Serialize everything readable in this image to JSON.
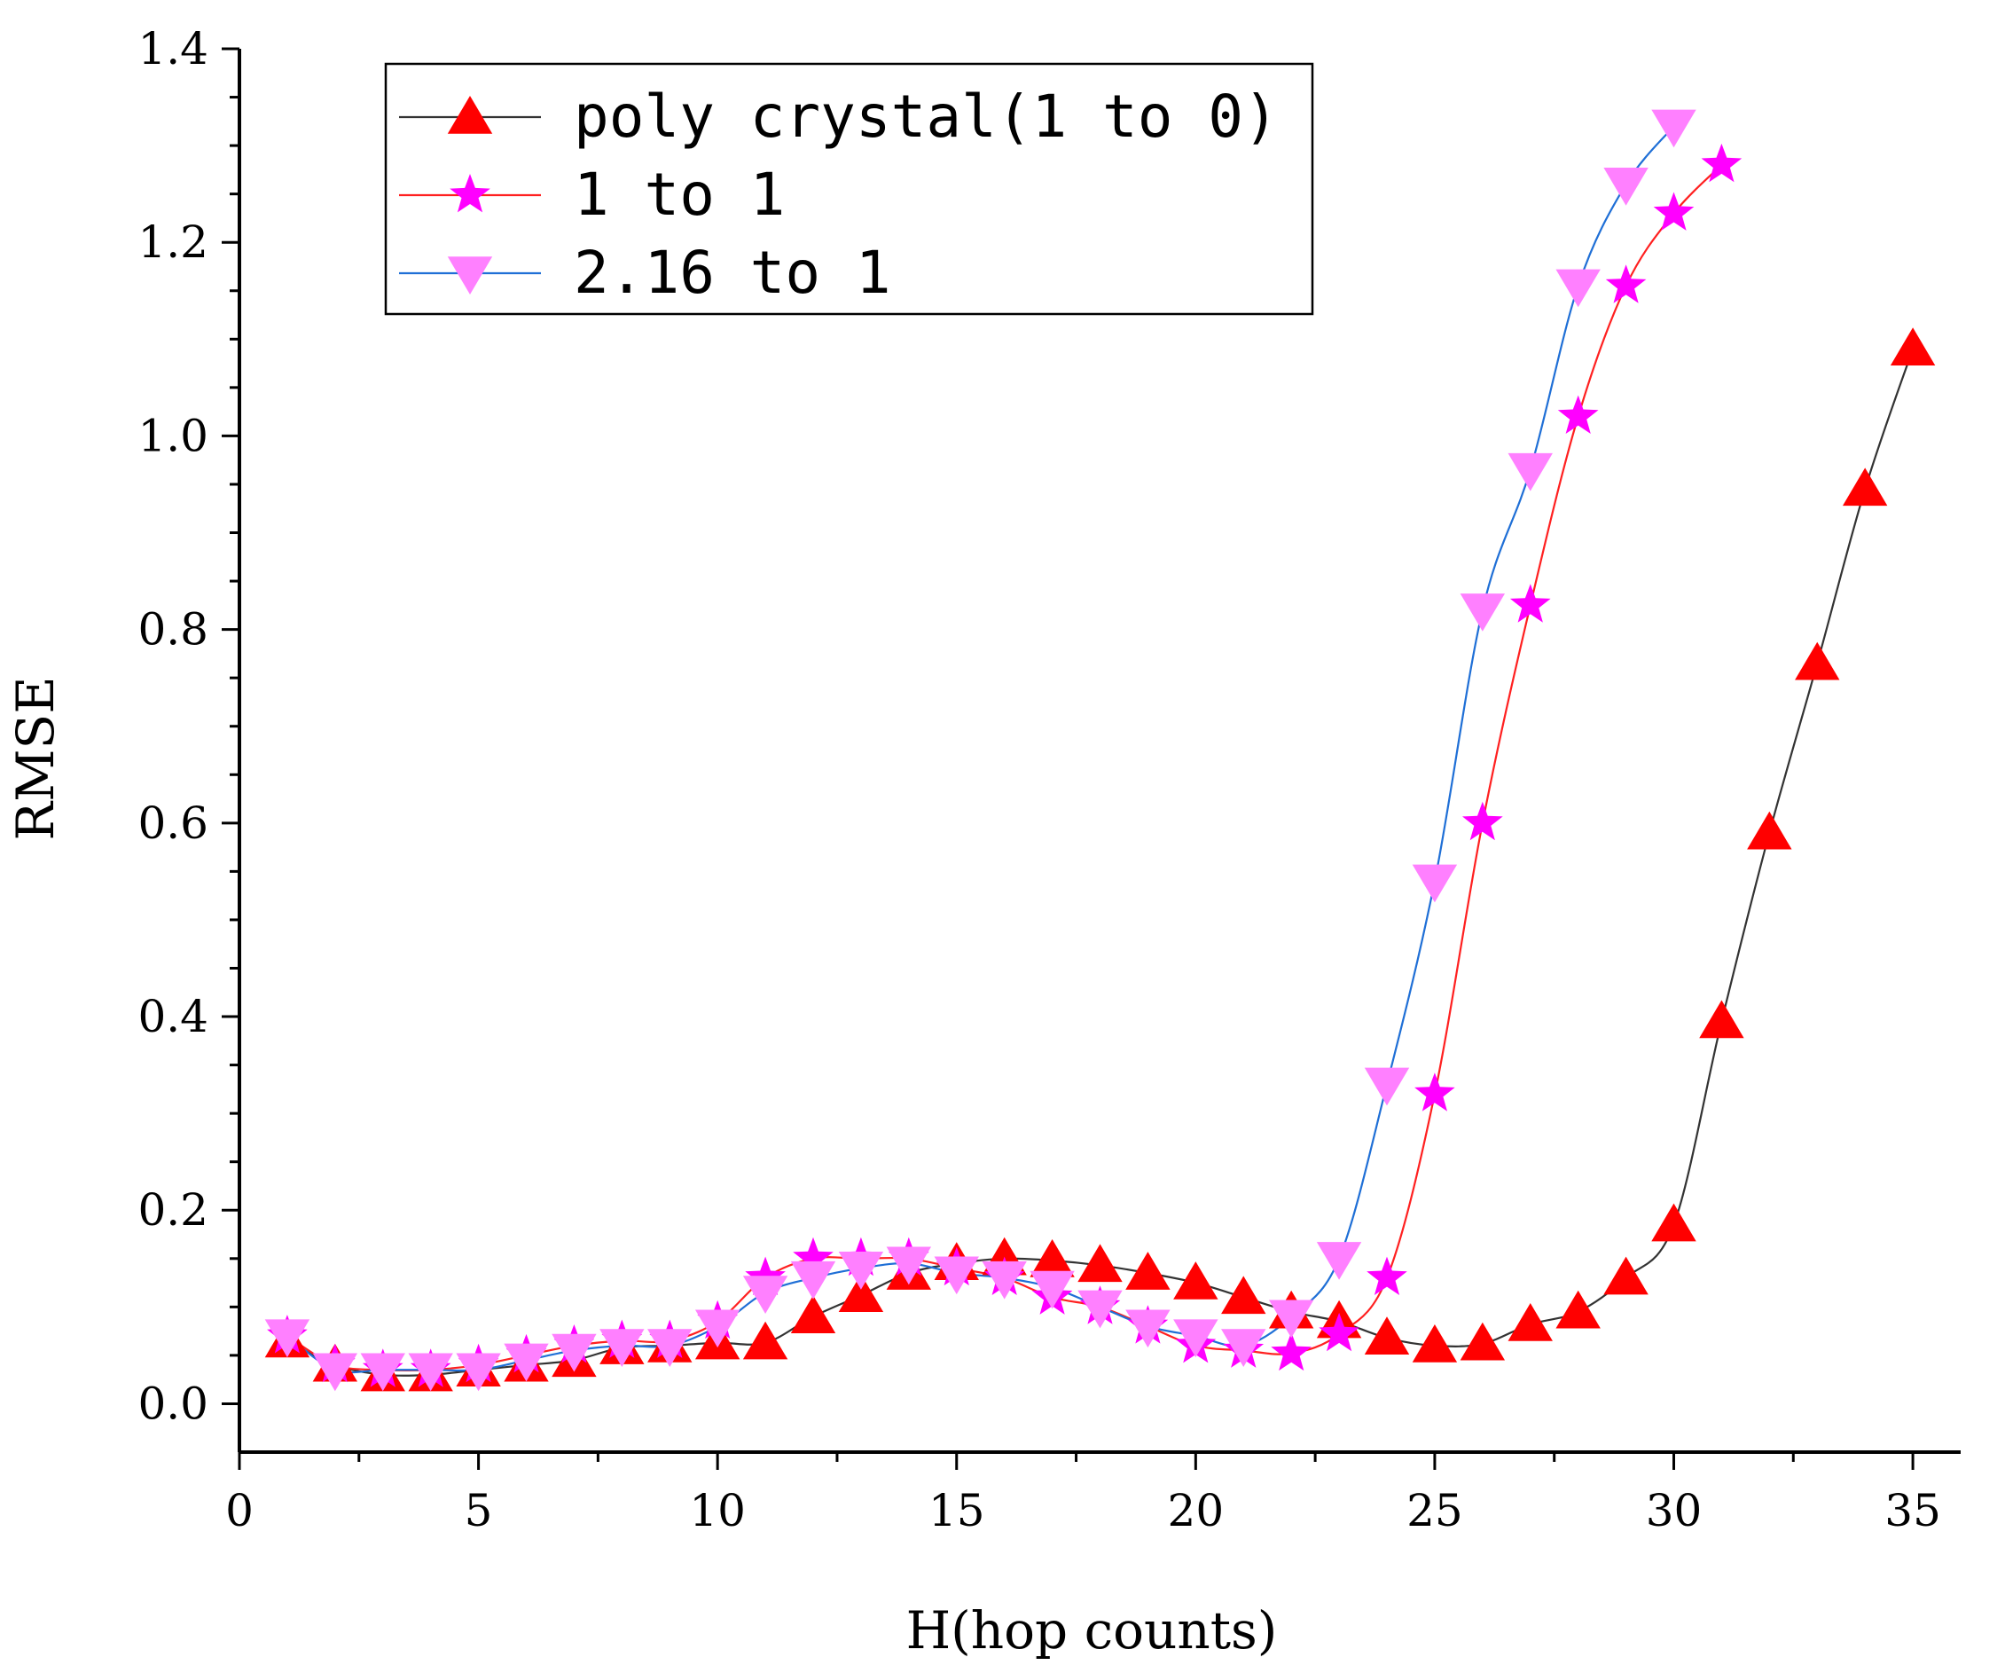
{
  "chart_data": {
    "type": "line",
    "xlabel": "H(hop counts)",
    "ylabel": "RMSE",
    "xlim": [
      0,
      36
    ],
    "ylim": [
      -0.05,
      1.4
    ],
    "xticks": [
      0,
      5,
      10,
      15,
      20,
      25,
      30,
      35
    ],
    "xtick_labels": [
      "0",
      "5",
      "10",
      "15",
      "20",
      "25",
      "30",
      "35"
    ],
    "yticks": [
      0.0,
      0.2,
      0.4,
      0.6,
      0.8,
      1.0,
      1.2,
      1.4
    ],
    "ytick_labels": [
      "0.0",
      "0.2",
      "0.4",
      "0.6",
      "0.8",
      "1.0",
      "1.2",
      "1.4"
    ],
    "grid": false,
    "legend_position": "top-left",
    "series": [
      {
        "name": "poly crystal(1 to 0)",
        "marker": "triangle-up",
        "marker_color": "#ff0000",
        "line_color": "#333333",
        "x": [
          1,
          2,
          3,
          4,
          5,
          6,
          7,
          8,
          9,
          10,
          11,
          12,
          13,
          14,
          15,
          16,
          17,
          18,
          19,
          20,
          21,
          22,
          23,
          24,
          25,
          26,
          27,
          28,
          29,
          30,
          31,
          32,
          33,
          34,
          35
        ],
        "y": [
          0.065,
          0.04,
          0.03,
          0.03,
          0.035,
          0.04,
          0.045,
          0.058,
          0.06,
          0.063,
          0.063,
          0.09,
          0.112,
          0.135,
          0.145,
          0.15,
          0.148,
          0.143,
          0.135,
          0.125,
          0.11,
          0.095,
          0.085,
          0.068,
          0.06,
          0.062,
          0.082,
          0.095,
          0.13,
          0.185,
          0.395,
          0.59,
          0.765,
          0.945,
          1.09
        ]
      },
      {
        "name": "1 to 1",
        "marker": "star",
        "marker_color": "#ff00ff",
        "line_color": "#ff2020",
        "x": [
          1,
          2,
          3,
          4,
          5,
          6,
          7,
          8,
          9,
          10,
          11,
          12,
          13,
          14,
          15,
          16,
          17,
          18,
          19,
          20,
          21,
          22,
          23,
          24,
          25,
          26,
          27,
          28,
          29,
          30,
          31
        ],
        "y": [
          0.07,
          0.04,
          0.035,
          0.035,
          0.04,
          0.05,
          0.06,
          0.065,
          0.065,
          0.085,
          0.13,
          0.15,
          0.15,
          0.15,
          0.14,
          0.13,
          0.11,
          0.1,
          0.08,
          0.06,
          0.055,
          0.052,
          0.072,
          0.13,
          0.32,
          0.6,
          0.825,
          1.02,
          1.155,
          1.23,
          1.28
        ]
      },
      {
        "name": "2.16 to 1",
        "marker": "triangle-down",
        "marker_color": "#ff80ff",
        "line_color": "#1f6fd6",
        "x": [
          1,
          2,
          3,
          4,
          5,
          6,
          7,
          8,
          9,
          10,
          11,
          12,
          13,
          14,
          15,
          16,
          17,
          18,
          19,
          20,
          21,
          22,
          23,
          24,
          25,
          26,
          27,
          28,
          29,
          30
        ],
        "y": [
          0.07,
          0.035,
          0.035,
          0.035,
          0.035,
          0.045,
          0.055,
          0.06,
          0.06,
          0.08,
          0.115,
          0.13,
          0.14,
          0.145,
          0.135,
          0.13,
          0.12,
          0.1,
          0.08,
          0.07,
          0.06,
          0.09,
          0.15,
          0.33,
          0.54,
          0.82,
          0.965,
          1.155,
          1.26,
          1.32
        ]
      }
    ]
  }
}
